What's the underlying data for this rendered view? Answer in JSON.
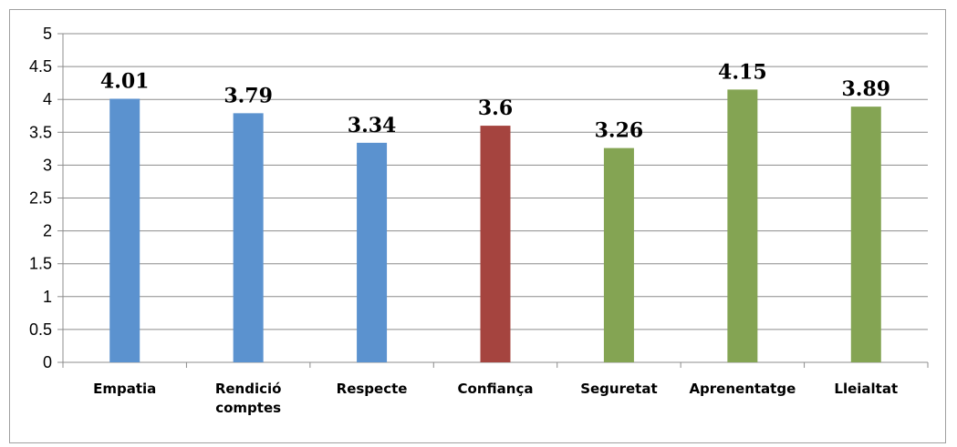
{
  "chart_data": {
    "type": "bar",
    "categories": [
      [
        "Empatia"
      ],
      [
        "Rendició",
        "comptes"
      ],
      [
        "Respecte"
      ],
      [
        "Confiança"
      ],
      [
        "Seguretat"
      ],
      [
        "Aprenentatge"
      ],
      [
        "Lleialtat"
      ]
    ],
    "values": [
      4.01,
      3.79,
      3.34,
      3.6,
      3.26,
      4.15,
      3.89
    ],
    "data_labels": [
      "4.01",
      "3.79",
      "3.34",
      "3.6",
      "3.26",
      "4.15",
      "3.89"
    ],
    "bar_colors": [
      "#5b92cf",
      "#5b92cf",
      "#5b92cf",
      "#a5443f",
      "#84a453",
      "#84a453",
      "#84a453"
    ],
    "yticks": [
      0,
      0.5,
      1,
      1.5,
      2,
      2.5,
      3,
      3.5,
      4,
      4.5,
      5
    ],
    "ytick_labels": [
      "0",
      "0.5",
      "1",
      "1.5",
      "2",
      "2.5",
      "3",
      "3.5",
      "4",
      "4.5",
      "5"
    ],
    "ylim": [
      0,
      5
    ],
    "grid": true,
    "title": "",
    "xlabel": "",
    "ylabel": "",
    "legend": "none"
  }
}
